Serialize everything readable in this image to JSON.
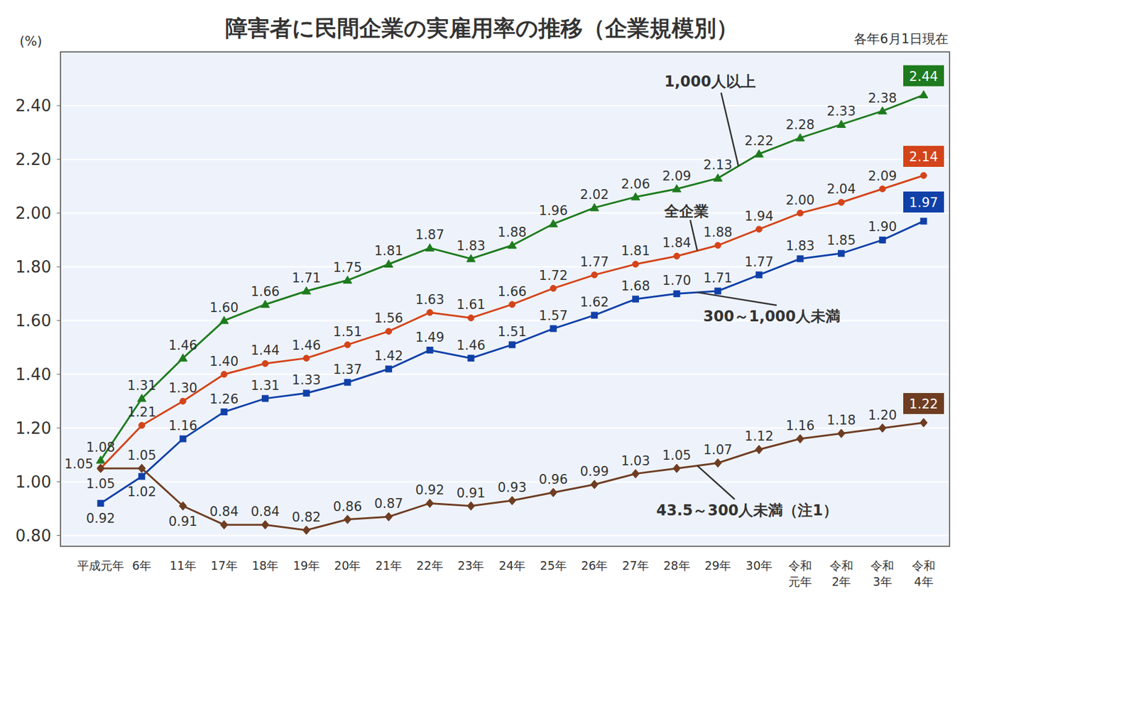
{
  "chart_data": {
    "type": "line",
    "title": "障害者に民間企業の実雇用率の推移（企業規模別）",
    "subtitle": "各年6月1日現在",
    "ylabel": "(%)",
    "categories": [
      "平成元年",
      "6年",
      "11年",
      "17年",
      "18年",
      "19年",
      "20年",
      "21年",
      "22年",
      "23年",
      "24年",
      "25年",
      "26年",
      "27年",
      "28年",
      "29年",
      "30年",
      "令和\n元年",
      "令和\n2年",
      "令和\n3年",
      "令和\n4年"
    ],
    "ylim": [
      0.76,
      2.6
    ],
    "yticks": [
      {
        "value": 0.8,
        "label": "0.80"
      },
      {
        "value": 1.0,
        "label": "1.00"
      },
      {
        "value": 1.2,
        "label": "1.20"
      },
      {
        "value": 1.4,
        "label": "1.40"
      },
      {
        "value": 1.6,
        "label": "1.60"
      },
      {
        "value": 1.8,
        "label": "1.80"
      },
      {
        "value": 2.0,
        "label": "2.00"
      },
      {
        "value": 2.2,
        "label": "2.20"
      },
      {
        "value": 2.4,
        "label": "2.40"
      }
    ],
    "grid": true,
    "data_labels": true,
    "series": [
      {
        "name": "1,000人以上",
        "color": "#1e7b1e",
        "marker": "triangle",
        "values": [
          1.08,
          1.31,
          1.46,
          1.6,
          1.66,
          1.71,
          1.75,
          1.81,
          1.87,
          1.83,
          1.88,
          1.96,
          2.02,
          2.06,
          2.09,
          2.13,
          2.22,
          2.28,
          2.33,
          2.38,
          2.44
        ],
        "value_labels": [
          "1.08",
          "1.31",
          "1.46",
          "1.60",
          "1.66",
          "1.71",
          "1.75",
          "1.81",
          "1.87",
          "1.83",
          "1.88",
          "1.96",
          "2.02",
          "2.06",
          "2.09",
          "2.13",
          "2.22",
          "2.28",
          "2.33",
          "2.38",
          "2.44"
        ]
      },
      {
        "name": "全企業",
        "color": "#d4441a",
        "marker": "circle",
        "values": [
          1.05,
          1.21,
          1.3,
          1.4,
          1.44,
          1.46,
          1.51,
          1.56,
          1.63,
          1.61,
          1.66,
          1.72,
          1.77,
          1.81,
          1.84,
          1.88,
          1.94,
          2.0,
          2.04,
          2.09,
          2.14
        ],
        "value_labels": [
          "1.05",
          "1.21",
          "1.30",
          "1.40",
          "1.44",
          "1.46",
          "1.51",
          "1.56",
          "1.63",
          "1.61",
          "1.66",
          "1.72",
          "1.77",
          "1.81",
          "1.84",
          "1.88",
          "1.94",
          "2.00",
          "2.04",
          "2.09",
          "2.14"
        ]
      },
      {
        "name": "300～1,000人未満",
        "color": "#1040a8",
        "marker": "square",
        "values": [
          0.92,
          1.02,
          1.16,
          1.26,
          1.31,
          1.33,
          1.37,
          1.42,
          1.49,
          1.46,
          1.51,
          1.57,
          1.62,
          1.68,
          1.7,
          1.71,
          1.77,
          1.83,
          1.85,
          1.9,
          1.97
        ],
        "value_labels": [
          "0.92",
          "1.02",
          "1.16",
          "1.26",
          "1.31",
          "1.33",
          "1.37",
          "1.42",
          "1.49",
          "1.46",
          "1.51",
          "1.57",
          "1.62",
          "1.68",
          "1.70",
          "1.71",
          "1.77",
          "1.83",
          "1.85",
          "1.90",
          "1.97"
        ]
      },
      {
        "name": "43.5～300人未満（注1）",
        "color": "#6e3d22",
        "marker": "diamond",
        "values": [
          1.05,
          1.05,
          0.91,
          0.84,
          0.84,
          0.82,
          0.86,
          0.87,
          0.92,
          0.91,
          0.93,
          0.96,
          0.99,
          1.03,
          1.05,
          1.07,
          1.12,
          1.16,
          1.18,
          1.2,
          1.22
        ],
        "value_labels": [
          "1.05",
          "1.05",
          "0.91",
          "0.84",
          "0.84",
          "0.82",
          "0.86",
          "0.87",
          "0.92",
          "0.91",
          "0.93",
          "0.96",
          "0.99",
          "1.03",
          "1.05",
          "1.07",
          "1.12",
          "1.16",
          "1.18",
          "1.20",
          "1.22"
        ]
      }
    ]
  }
}
